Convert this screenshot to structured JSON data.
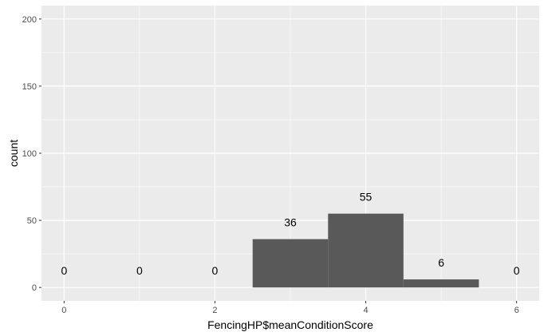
{
  "chart_data": {
    "type": "bar",
    "xlabel": "FencingHP$meanConditionScore",
    "ylabel": "count",
    "xlim": [
      -0.3,
      6.3
    ],
    "ylim": [
      -10,
      210
    ],
    "x_ticks": [
      0,
      2,
      4,
      6
    ],
    "x_tick_labels": [
      "0",
      "2",
      "4",
      "6"
    ],
    "y_ticks": [
      0,
      50,
      100,
      150,
      200
    ],
    "y_tick_labels": [
      "0",
      "50",
      "100",
      "150",
      "200"
    ],
    "bin_width": 1,
    "bins": [
      {
        "center": 0,
        "count": 0,
        "label": "0"
      },
      {
        "center": 1,
        "count": 0,
        "label": "0"
      },
      {
        "center": 2,
        "count": 0,
        "label": "0"
      },
      {
        "center": 3,
        "count": 36,
        "label": "36"
      },
      {
        "center": 4,
        "count": 55,
        "label": "55"
      },
      {
        "center": 5,
        "count": 6,
        "label": "6"
      },
      {
        "center": 6,
        "count": 0,
        "label": "0"
      }
    ],
    "grid": true,
    "colors": {
      "panel": "#ebebeb",
      "grid_major": "#ffffff",
      "bar_fill": "#595959"
    }
  }
}
